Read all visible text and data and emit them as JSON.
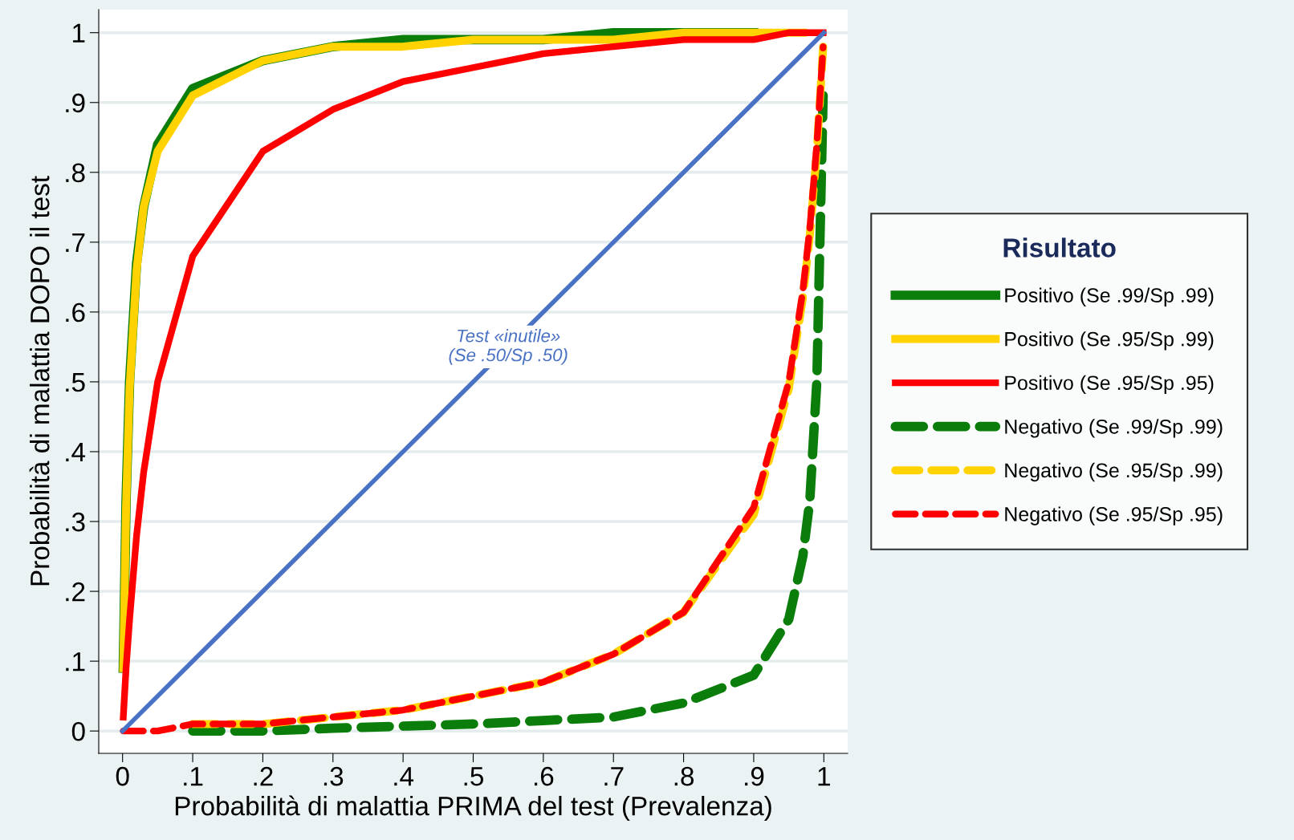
{
  "chart_data": {
    "type": "line",
    "xlabel": "Probabilità di malattia PRIMA del test (Prevalenza)",
    "ylabel": "Probabilità di malattia DOPO il test",
    "legend_title": "Risultato",
    "legend": "right",
    "grid": "y",
    "marker": "none",
    "x": [
      0.001,
      0.005,
      0.01,
      0.02,
      0.03,
      0.05,
      0.1,
      0.2,
      0.3,
      0.4,
      0.5,
      0.6,
      0.7,
      0.8,
      0.9,
      0.95,
      0.97,
      0.98,
      0.99,
      0.999
    ],
    "series": [
      {
        "name": "Positivo (Se .99/Sp .99)",
        "color": "#0a7d0a",
        "line_style": "solid",
        "x": [
          0.001,
          0.005,
          0.01,
          0.02,
          0.03,
          0.05,
          0.1,
          0.2,
          0.3,
          0.4,
          0.5,
          0.6,
          0.7,
          0.8,
          0.9
        ],
        "values": [
          0.09,
          0.33,
          0.5,
          0.67,
          0.75,
          0.84,
          0.92,
          0.96,
          0.98,
          0.99,
          0.99,
          0.99,
          1.0,
          1.0,
          1.0
        ]
      },
      {
        "name": "Positivo (Se .95/Sp .99)",
        "color": "#ffd200",
        "line_style": "solid",
        "x": [
          0.001,
          0.005,
          0.01,
          0.02,
          0.03,
          0.05,
          0.1,
          0.2,
          0.3,
          0.4,
          0.5,
          0.6,
          0.7,
          0.8,
          0.9,
          0.95,
          0.97
        ],
        "values": [
          0.09,
          0.32,
          0.49,
          0.66,
          0.75,
          0.83,
          0.91,
          0.96,
          0.98,
          0.98,
          0.99,
          0.99,
          0.99,
          1.0,
          1.0,
          1.0,
          1.0
        ]
      },
      {
        "name": "Positivo (Se .95/Sp .95)",
        "color": "#ff0000",
        "line_style": "solid",
        "values": [
          0.02,
          0.09,
          0.16,
          0.28,
          0.37,
          0.5,
          0.68,
          0.83,
          0.89,
          0.93,
          0.95,
          0.97,
          0.98,
          0.99,
          0.99,
          1.0,
          1.0,
          1.0,
          1.0,
          1.0
        ]
      },
      {
        "name": "Negativo (Se .99/Sp .99)",
        "color": "#0a7d0a",
        "line_style": "dashed",
        "x": [
          0.1,
          0.2,
          0.3,
          0.4,
          0.5,
          0.6,
          0.7,
          0.8,
          0.9,
          0.95,
          0.97,
          0.98,
          0.99,
          0.999
        ],
        "values": [
          0.0,
          0.0,
          0.004,
          0.007,
          0.01,
          0.015,
          0.02,
          0.04,
          0.08,
          0.16,
          0.25,
          0.33,
          0.5,
          0.91
        ]
      },
      {
        "name": "Negativo (Se .95/Sp .99)",
        "color": "#ffd200",
        "line_style": "dashed",
        "x": [
          0.1,
          0.2,
          0.3,
          0.4,
          0.5,
          0.6,
          0.7,
          0.8,
          0.9,
          0.95,
          0.97,
          0.98,
          0.99,
          0.999
        ],
        "values": [
          0.01,
          0.01,
          0.02,
          0.03,
          0.05,
          0.07,
          0.11,
          0.17,
          0.31,
          0.49,
          0.62,
          0.71,
          0.83,
          0.98
        ]
      },
      {
        "name": "Negativo (Se .95/Sp .95)",
        "color": "#ff0000",
        "line_style": "dashed",
        "values": [
          0.0,
          0.0,
          0.0,
          0.0,
          0.0,
          0.0,
          0.01,
          0.01,
          0.02,
          0.03,
          0.05,
          0.07,
          0.11,
          0.17,
          0.32,
          0.5,
          0.63,
          0.72,
          0.84,
          0.98
        ]
      },
      {
        "color": "#4a72c4",
        "line_style": "solid",
        "x": [
          0,
          1
        ],
        "values": [
          0,
          1
        ]
      }
    ],
    "annotations": [
      {
        "text": "Test «inutile»\n(Se .50/Sp .50)",
        "x": 0.55,
        "y": 0.55
      }
    ],
    "xlim": [
      -0.034,
      1.034
    ],
    "ylim": [
      -0.032,
      1.033
    ],
    "xticks": [
      0,
      {
        "value": 0.1,
        "label": ".1"
      },
      {
        "value": 0.2,
        "label": ".2"
      },
      {
        "value": 0.3,
        "label": ".3"
      },
      {
        "value": 0.4,
        "label": ".4"
      },
      {
        "value": 0.5,
        "label": ".5"
      },
      {
        "value": 0.6,
        "label": ".6"
      },
      {
        "value": 0.7,
        "label": ".7"
      },
      {
        "value": 0.8,
        "label": ".8"
      },
      {
        "value": 0.9,
        "label": ".9"
      },
      1
    ],
    "yticks": [
      0,
      {
        "value": 0.1,
        "label": ".1"
      },
      {
        "value": 0.2,
        "label": ".2"
      },
      {
        "value": 0.3,
        "label": ".3"
      },
      {
        "value": 0.4,
        "label": ".4"
      },
      {
        "value": 0.5,
        "label": ".5"
      },
      {
        "value": 0.6,
        "label": ".6"
      },
      {
        "value": 0.7,
        "label": ".7"
      },
      {
        "value": 0.8,
        "label": ".8"
      },
      {
        "value": 0.9,
        "label": ".9"
      },
      1
    ]
  }
}
